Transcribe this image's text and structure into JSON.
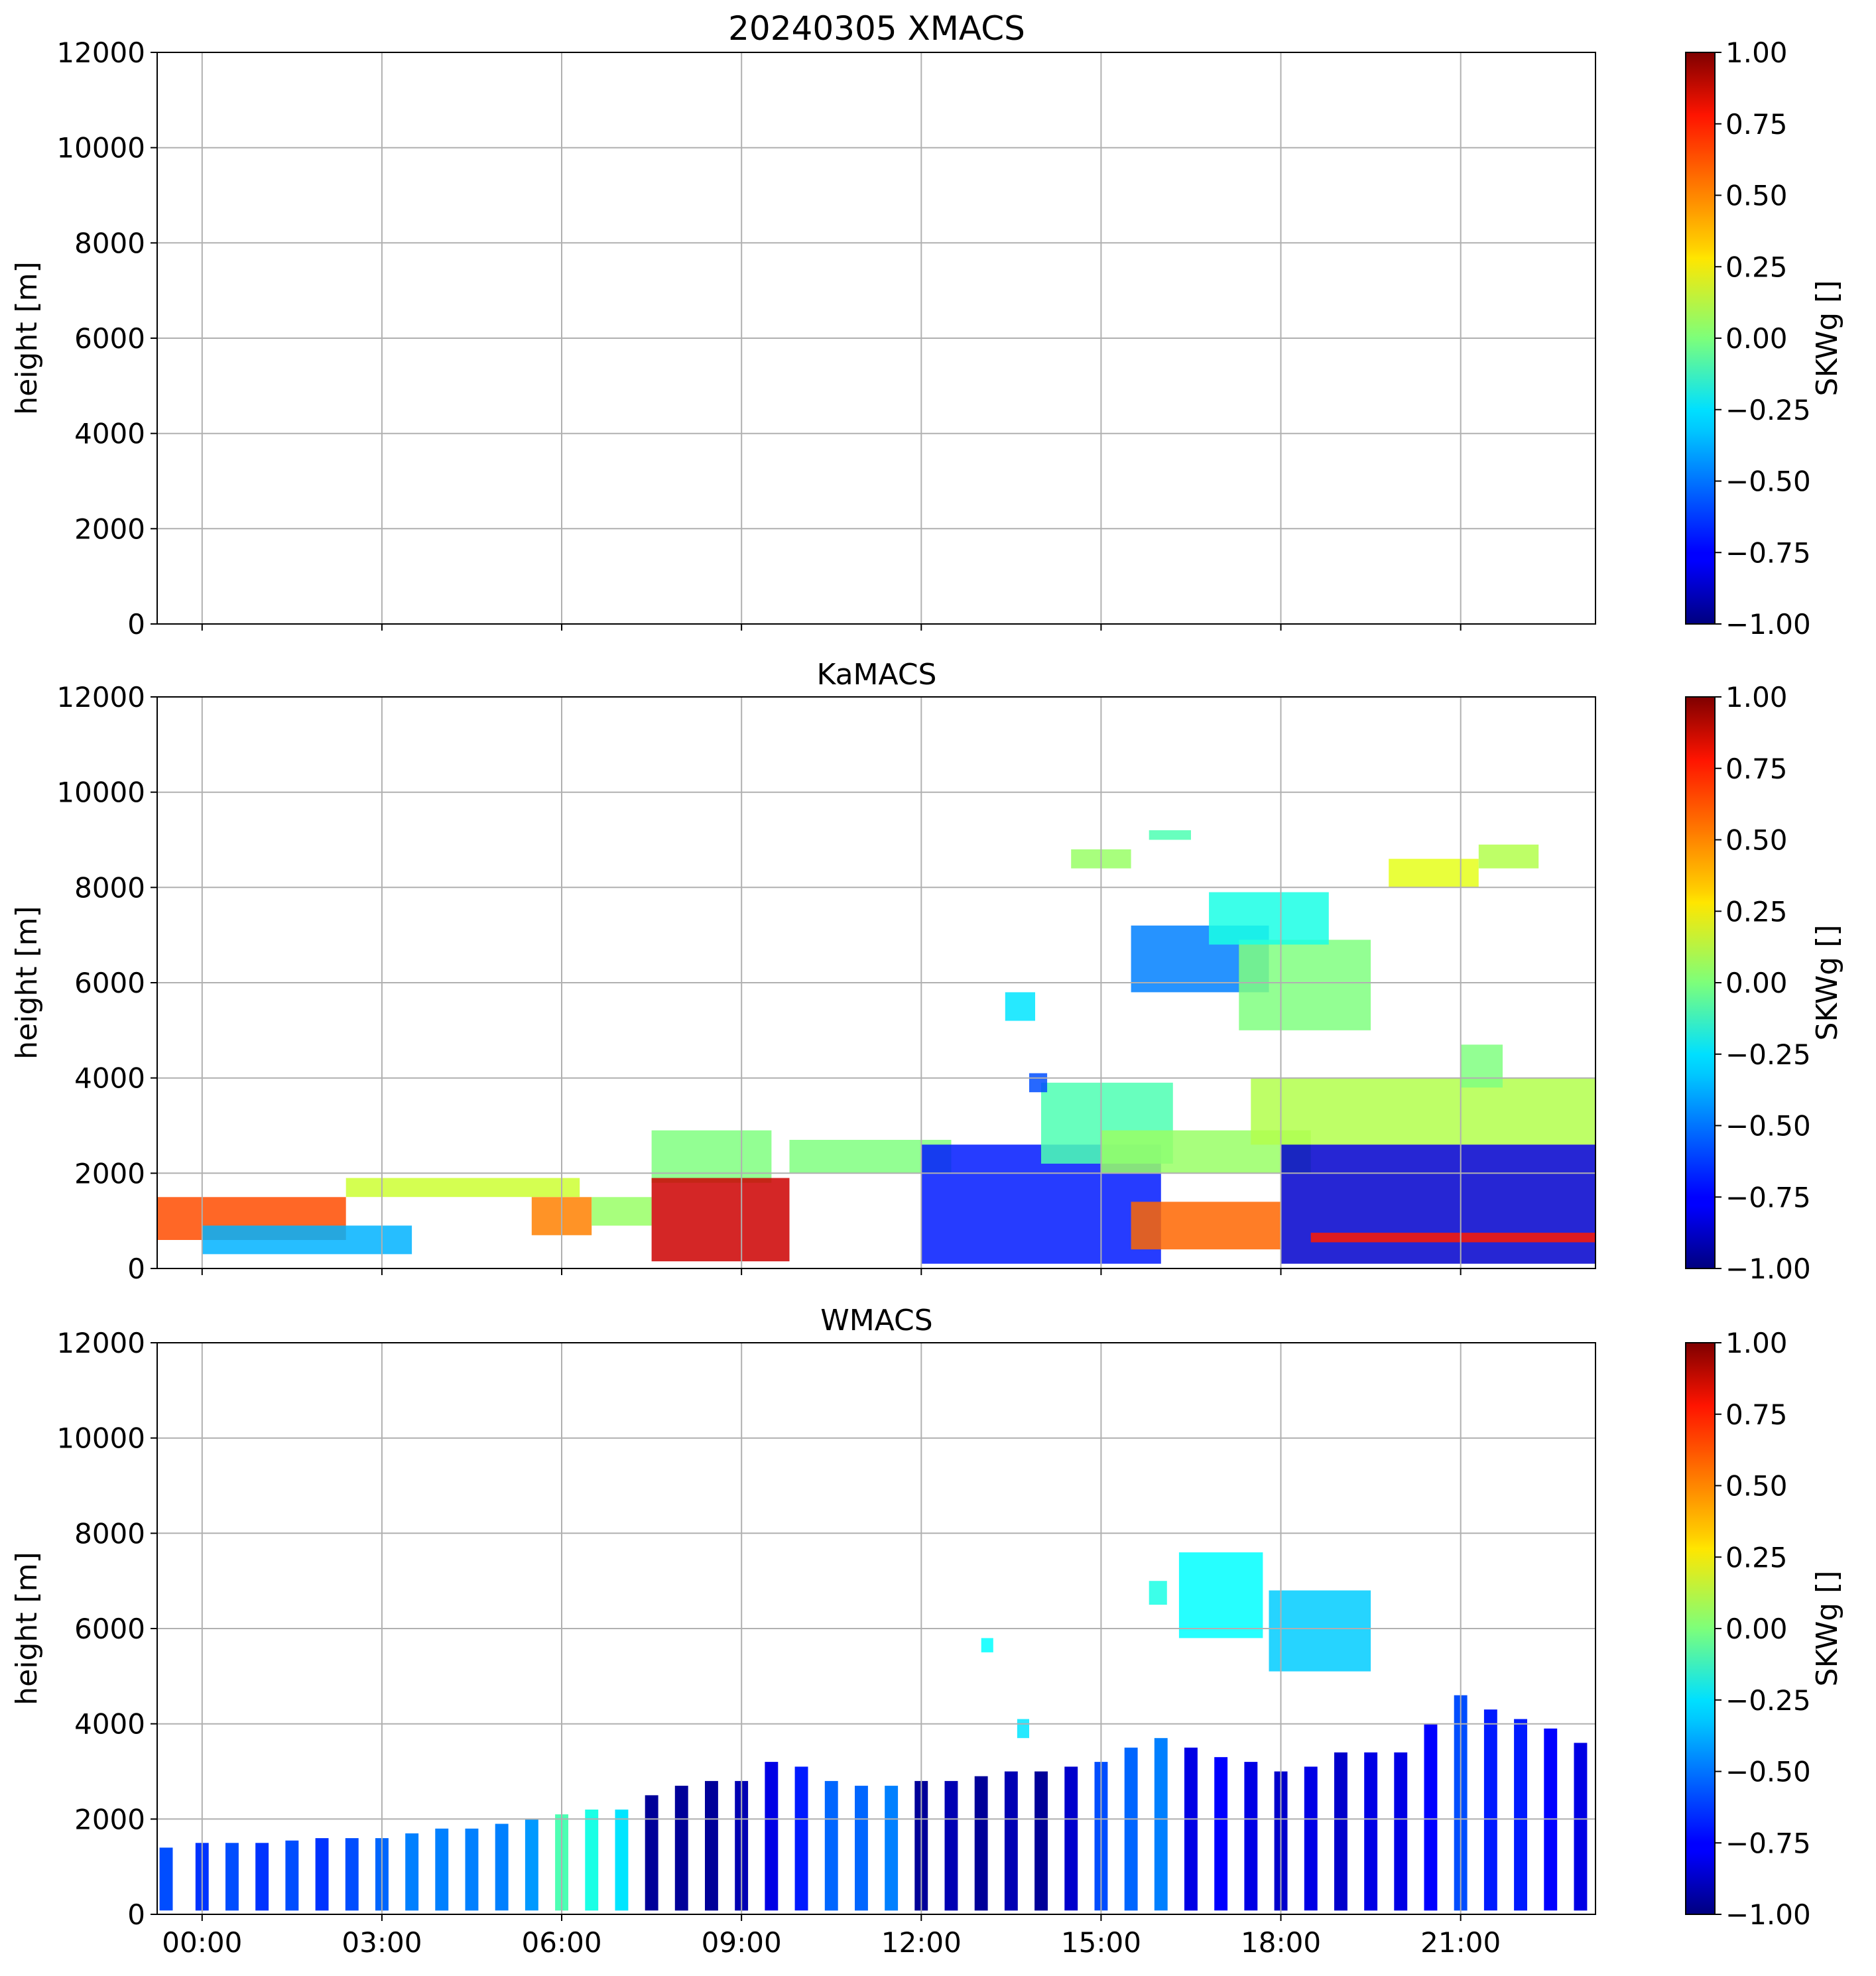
{
  "figure": {
    "title": "20240305 XMACS"
  },
  "chart_data": [
    {
      "id": "xmacs",
      "type": "heatmap",
      "title": "20240305 XMACS",
      "xlabel": "",
      "ylabel": "height [m]",
      "xlim_hours": [
        -0.75,
        23.25
      ],
      "ylim": [
        0,
        12000
      ],
      "yticks": [
        0,
        2000,
        4000,
        6000,
        8000,
        10000,
        12000
      ],
      "xtick_hours": [
        0,
        3,
        6,
        9,
        12,
        15,
        18,
        21
      ],
      "xtick_labels": [],
      "grid": true,
      "colorbar": {
        "label": "SKWg []",
        "colormap": "jet",
        "range": [
          -1.0,
          1.0
        ],
        "ticks": [
          "1.00",
          "0.75",
          "0.50",
          "0.25",
          "0.00",
          "−0.25",
          "−0.50",
          "−0.75",
          "−1.00"
        ]
      },
      "regions": []
    },
    {
      "id": "kamacs",
      "type": "heatmap",
      "title": "KaMACS",
      "xlabel": "",
      "ylabel": "height [m]",
      "xlim_hours": [
        -0.75,
        23.25
      ],
      "ylim": [
        0,
        12000
      ],
      "yticks": [
        0,
        2000,
        4000,
        6000,
        8000,
        10000,
        12000
      ],
      "xtick_hours": [
        0,
        3,
        6,
        9,
        12,
        15,
        18,
        21
      ],
      "xtick_labels": [],
      "grid": true,
      "colorbar": {
        "label": "SKWg []",
        "colormap": "jet",
        "range": [
          -1.0,
          1.0
        ],
        "ticks": [
          "1.00",
          "0.75",
          "0.50",
          "0.25",
          "0.00",
          "−0.25",
          "−0.50",
          "−0.75",
          "−1.00"
        ]
      },
      "regions": [
        {
          "t0": -0.75,
          "t1": 2.4,
          "h0": 600,
          "h1": 1500,
          "v": 0.6
        },
        {
          "t0": 0.0,
          "t1": 3.5,
          "h0": 300,
          "h1": 900,
          "v": -0.4
        },
        {
          "t0": 2.4,
          "t1": 6.3,
          "h0": 1500,
          "h1": 1900,
          "v": 0.15
        },
        {
          "t0": 5.5,
          "t1": 6.5,
          "h0": 700,
          "h1": 1500,
          "v": 0.5
        },
        {
          "t0": 6.5,
          "t1": 7.5,
          "h0": 900,
          "h1": 1500,
          "v": 0.05
        },
        {
          "t0": 7.5,
          "t1": 9.5,
          "h0": 1800,
          "h1": 2900,
          "v": 0.0
        },
        {
          "t0": 7.5,
          "t1": 9.8,
          "h0": 150,
          "h1": 1900,
          "v": 0.85
        },
        {
          "t0": 9.8,
          "t1": 12.5,
          "h0": 2000,
          "h1": 2700,
          "v": 0.0
        },
        {
          "t0": 12.0,
          "t1": 16.0,
          "h0": 100,
          "h1": 2600,
          "v": -0.7
        },
        {
          "t0": 14.0,
          "t1": 16.2,
          "h0": 2200,
          "h1": 3900,
          "v": -0.1
        },
        {
          "t0": 15.0,
          "t1": 18.5,
          "h0": 2000,
          "h1": 2900,
          "v": 0.05
        },
        {
          "t0": 15.5,
          "t1": 18.0,
          "h0": 400,
          "h1": 1400,
          "v": 0.55
        },
        {
          "t0": 17.5,
          "t1": 23.25,
          "h0": 2600,
          "h1": 4000,
          "v": 0.1
        },
        {
          "t0": 18.0,
          "t1": 23.25,
          "h0": 100,
          "h1": 2600,
          "v": -0.85
        },
        {
          "t0": 18.5,
          "t1": 23.25,
          "h0": 550,
          "h1": 750,
          "v": 0.7
        },
        {
          "t0": 21.0,
          "t1": 21.7,
          "h0": 3800,
          "h1": 4700,
          "v": 0.0
        },
        {
          "t0": 15.5,
          "t1": 17.8,
          "h0": 5800,
          "h1": 7200,
          "v": -0.5
        },
        {
          "t0": 17.3,
          "t1": 19.5,
          "h0": 5000,
          "h1": 6900,
          "v": 0.0
        },
        {
          "t0": 16.8,
          "t1": 18.8,
          "h0": 6800,
          "h1": 7900,
          "v": -0.2
        },
        {
          "t0": 14.5,
          "t1": 15.5,
          "h0": 8400,
          "h1": 8800,
          "v": 0.05
        },
        {
          "t0": 15.8,
          "t1": 16.5,
          "h0": 9000,
          "h1": 9200,
          "v": -0.1
        },
        {
          "t0": 19.8,
          "t1": 21.3,
          "h0": 8000,
          "h1": 8600,
          "v": 0.2
        },
        {
          "t0": 21.3,
          "t1": 22.3,
          "h0": 8400,
          "h1": 8900,
          "v": 0.1
        },
        {
          "t0": 13.4,
          "t1": 13.9,
          "h0": 5200,
          "h1": 5800,
          "v": -0.3
        },
        {
          "t0": 13.8,
          "t1": 14.1,
          "h0": 3700,
          "h1": 4100,
          "v": -0.6
        }
      ]
    },
    {
      "id": "wmacs",
      "type": "heatmap",
      "title": "WMACS",
      "xlabel": "",
      "ylabel": "height [m]",
      "xlim_hours": [
        -0.75,
        23.25
      ],
      "ylim": [
        0,
        12000
      ],
      "yticks": [
        0,
        2000,
        4000,
        6000,
        8000,
        10000,
        12000
      ],
      "xtick_hours": [
        0,
        3,
        6,
        9,
        12,
        15,
        18,
        21
      ],
      "xtick_labels": [
        "00:00",
        "03:00",
        "06:00",
        "09:00",
        "12:00",
        "15:00",
        "18:00",
        "21:00"
      ],
      "grid": true,
      "colorbar": {
        "label": "SKWg []",
        "colormap": "jet",
        "range": [
          -1.0,
          1.0
        ],
        "ticks": [
          "1.00",
          "0.75",
          "0.50",
          "0.25",
          "0.00",
          "−0.25",
          "−0.50",
          "−0.75",
          "−1.00"
        ]
      },
      "columns": [
        {
          "t": -0.6,
          "top": 1400,
          "v": -0.6
        },
        {
          "t": 0.0,
          "top": 1500,
          "v": -0.65
        },
        {
          "t": 0.5,
          "top": 1500,
          "v": -0.6
        },
        {
          "t": 1.0,
          "top": 1500,
          "v": -0.65
        },
        {
          "t": 1.5,
          "top": 1550,
          "v": -0.6
        },
        {
          "t": 2.0,
          "top": 1600,
          "v": -0.65
        },
        {
          "t": 2.5,
          "top": 1600,
          "v": -0.6
        },
        {
          "t": 3.0,
          "top": 1600,
          "v": -0.55
        },
        {
          "t": 3.5,
          "top": 1700,
          "v": -0.5
        },
        {
          "t": 4.0,
          "top": 1800,
          "v": -0.5
        },
        {
          "t": 4.5,
          "top": 1800,
          "v": -0.5
        },
        {
          "t": 5.0,
          "top": 1900,
          "v": -0.5
        },
        {
          "t": 5.5,
          "top": 2000,
          "v": -0.45
        },
        {
          "t": 6.0,
          "top": 2100,
          "v": -0.1
        },
        {
          "t": 6.5,
          "top": 2200,
          "v": -0.2
        },
        {
          "t": 7.0,
          "top": 2200,
          "v": -0.3
        },
        {
          "t": 7.5,
          "top": 2500,
          "v": -0.95
        },
        {
          "t": 8.0,
          "top": 2700,
          "v": -0.95
        },
        {
          "t": 8.5,
          "top": 2800,
          "v": -0.95
        },
        {
          "t": 9.0,
          "top": 2800,
          "v": -0.9
        },
        {
          "t": 9.5,
          "top": 3200,
          "v": -0.8
        },
        {
          "t": 10.0,
          "top": 3100,
          "v": -0.7
        },
        {
          "t": 10.5,
          "top": 2800,
          "v": -0.55
        },
        {
          "t": 11.0,
          "top": 2700,
          "v": -0.55
        },
        {
          "t": 11.5,
          "top": 2700,
          "v": -0.5
        },
        {
          "t": 12.0,
          "top": 2800,
          "v": -0.95
        },
        {
          "t": 12.5,
          "top": 2800,
          "v": -0.9
        },
        {
          "t": 13.0,
          "top": 2900,
          "v": -0.95
        },
        {
          "t": 13.5,
          "top": 3000,
          "v": -0.9
        },
        {
          "t": 14.0,
          "top": 3000,
          "v": -0.95
        },
        {
          "t": 14.5,
          "top": 3100,
          "v": -0.85
        },
        {
          "t": 15.0,
          "top": 3200,
          "v": -0.6
        },
        {
          "t": 15.5,
          "top": 3500,
          "v": -0.55
        },
        {
          "t": 16.0,
          "top": 3700,
          "v": -0.5
        },
        {
          "t": 16.5,
          "top": 3500,
          "v": -0.8
        },
        {
          "t": 17.0,
          "top": 3300,
          "v": -0.75
        },
        {
          "t": 17.5,
          "top": 3200,
          "v": -0.8
        },
        {
          "t": 18.0,
          "top": 3000,
          "v": -0.85
        },
        {
          "t": 18.5,
          "top": 3100,
          "v": -0.8
        },
        {
          "t": 19.0,
          "top": 3400,
          "v": -0.85
        },
        {
          "t": 19.5,
          "top": 3400,
          "v": -0.8
        },
        {
          "t": 20.0,
          "top": 3400,
          "v": -0.8
        },
        {
          "t": 20.5,
          "top": 4000,
          "v": -0.75
        },
        {
          "t": 21.0,
          "top": 4600,
          "v": -0.6
        },
        {
          "t": 21.5,
          "top": 4300,
          "v": -0.7
        },
        {
          "t": 22.0,
          "top": 4100,
          "v": -0.7
        },
        {
          "t": 22.5,
          "top": 3900,
          "v": -0.75
        },
        {
          "t": 23.0,
          "top": 3600,
          "v": -0.8
        }
      ],
      "regions": [
        {
          "t0": 16.3,
          "t1": 17.7,
          "h0": 5800,
          "h1": 7600,
          "v": -0.25
        },
        {
          "t0": 17.8,
          "t1": 19.5,
          "h0": 5100,
          "h1": 6800,
          "v": -0.35
        },
        {
          "t0": 15.8,
          "t1": 16.1,
          "h0": 6500,
          "h1": 7000,
          "v": -0.2
        },
        {
          "t0": 13.0,
          "t1": 13.2,
          "h0": 5500,
          "h1": 5800,
          "v": -0.25
        },
        {
          "t0": 13.6,
          "t1": 13.8,
          "h0": 3700,
          "h1": 4100,
          "v": -0.3
        }
      ]
    }
  ]
}
